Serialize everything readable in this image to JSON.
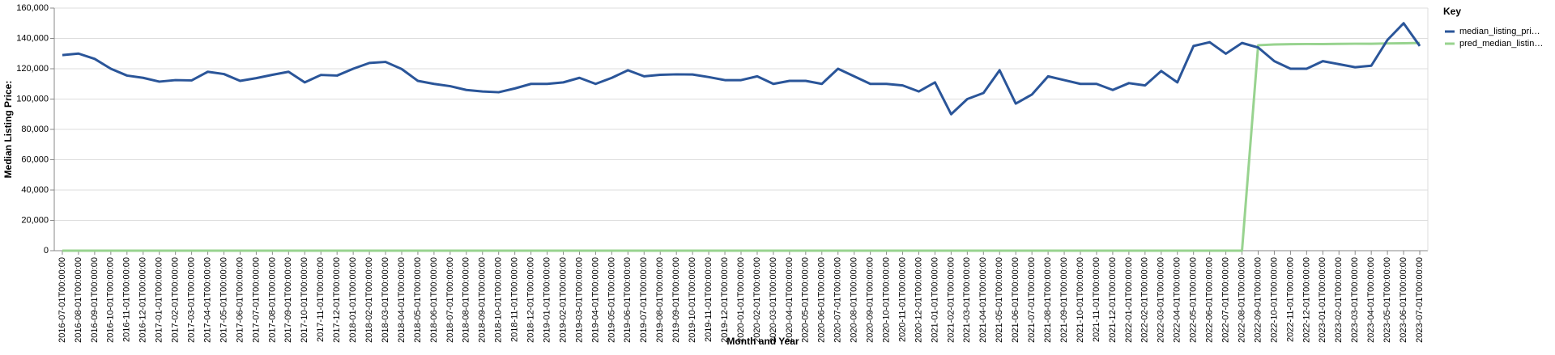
{
  "chart_data": {
    "type": "line",
    "x_label": "Month and Year",
    "y_label": "Median Listing Price:",
    "legend_title": "Key",
    "legend_position": "right",
    "grid": true,
    "categories": [
      "2016-07-01T00:00:00",
      "2016-08-01T00:00:00",
      "2016-09-01T00:00:00",
      "2016-10-01T00:00:00",
      "2016-11-01T00:00:00",
      "2016-12-01T00:00:00",
      "2017-01-01T00:00:00",
      "2017-02-01T00:00:00",
      "2017-03-01T00:00:00",
      "2017-04-01T00:00:00",
      "2017-05-01T00:00:00",
      "2017-06-01T00:00:00",
      "2017-07-01T00:00:00",
      "2017-08-01T00:00:00",
      "2017-09-01T00:00:00",
      "2017-10-01T00:00:00",
      "2017-11-01T00:00:00",
      "2017-12-01T00:00:00",
      "2018-01-01T00:00:00",
      "2018-02-01T00:00:00",
      "2018-03-01T00:00:00",
      "2018-04-01T00:00:00",
      "2018-05-01T00:00:00",
      "2018-06-01T00:00:00",
      "2018-07-01T00:00:00",
      "2018-08-01T00:00:00",
      "2018-09-01T00:00:00",
      "2018-10-01T00:00:00",
      "2018-11-01T00:00:00",
      "2018-12-01T00:00:00",
      "2019-01-01T00:00:00",
      "2019-02-01T00:00:00",
      "2019-03-01T00:00:00",
      "2019-04-01T00:00:00",
      "2019-05-01T00:00:00",
      "2019-06-01T00:00:00",
      "2019-07-01T00:00:00",
      "2019-08-01T00:00:00",
      "2019-09-01T00:00:00",
      "2019-10-01T00:00:00",
      "2019-11-01T00:00:00",
      "2019-12-01T00:00:00",
      "2020-01-01T00:00:00",
      "2020-02-01T00:00:00",
      "2020-03-01T00:00:00",
      "2020-04-01T00:00:00",
      "2020-05-01T00:00:00",
      "2020-06-01T00:00:00",
      "2020-07-01T00:00:00",
      "2020-08-01T00:00:00",
      "2020-09-01T00:00:00",
      "2020-10-01T00:00:00",
      "2020-11-01T00:00:00",
      "2020-12-01T00:00:00",
      "2021-01-01T00:00:00",
      "2021-02-01T00:00:00",
      "2021-03-01T00:00:00",
      "2021-04-01T00:00:00",
      "2021-05-01T00:00:00",
      "2021-06-01T00:00:00",
      "2021-07-01T00:00:00",
      "2021-08-01T00:00:00",
      "2021-09-01T00:00:00",
      "2021-10-01T00:00:00",
      "2021-11-01T00:00:00",
      "2021-12-01T00:00:00",
      "2022-01-01T00:00:00",
      "2022-02-01T00:00:00",
      "2022-03-01T00:00:00",
      "2022-04-01T00:00:00",
      "2022-05-01T00:00:00",
      "2022-06-01T00:00:00",
      "2022-07-01T00:00:00",
      "2022-08-01T00:00:00",
      "2022-09-01T00:00:00",
      "2022-10-01T00:00:00",
      "2022-11-01T00:00:00",
      "2022-12-01T00:00:00",
      "2023-01-01T00:00:00",
      "2023-02-01T00:00:00",
      "2023-03-01T00:00:00",
      "2023-04-01T00:00:00",
      "2023-05-01T00:00:00",
      "2023-06-01T00:00:00",
      "2023-07-01T00:00:00"
    ],
    "series": [
      {
        "name": "median_listing_pri…",
        "color": "#2a5599",
        "values": [
          129000,
          130000,
          126500,
          120000,
          115500,
          114000,
          111500,
          112500,
          112300,
          118000,
          116500,
          112000,
          113800,
          116000,
          118000,
          111000,
          115900,
          115500,
          120000,
          123800,
          124500,
          119800,
          112000,
          110000,
          108500,
          106000,
          105000,
          104500,
          107000,
          110000,
          110000,
          111000,
          114000,
          110000,
          114000,
          119000,
          115000,
          116000,
          116300,
          116200,
          114500,
          112500,
          112500,
          115000,
          110000,
          112000,
          112000,
          110000,
          120000,
          115000,
          110000,
          110000,
          109000,
          105000,
          111000,
          90000,
          100000,
          104000,
          119000,
          97000,
          103000,
          115000,
          112500,
          110000,
          110000,
          106000,
          110500,
          109000,
          118500,
          111000,
          135000,
          137500,
          129900,
          137000,
          134000,
          125000,
          120000,
          120000,
          125000,
          123000,
          121000,
          122000,
          139000,
          150000,
          135000
        ]
      },
      {
        "name": "pred_median_listin…",
        "color": "#98d38f",
        "values": [
          0,
          0,
          0,
          0,
          0,
          0,
          0,
          0,
          0,
          0,
          0,
          0,
          0,
          0,
          0,
          0,
          0,
          0,
          0,
          0,
          0,
          0,
          0,
          0,
          0,
          0,
          0,
          0,
          0,
          0,
          0,
          0,
          0,
          0,
          0,
          0,
          0,
          0,
          0,
          0,
          0,
          0,
          0,
          0,
          0,
          0,
          0,
          0,
          0,
          0,
          0,
          0,
          0,
          0,
          0,
          0,
          0,
          0,
          0,
          0,
          0,
          0,
          0,
          0,
          0,
          0,
          0,
          0,
          0,
          0,
          0,
          0,
          0,
          0,
          135500,
          136000,
          136200,
          136300,
          136300,
          136400,
          136500,
          136500,
          136700,
          136800,
          137000
        ]
      }
    ],
    "ylim": [
      0,
      160000
    ],
    "yticks": [
      0,
      {
        "value": 20000,
        "label": "20,000"
      },
      {
        "value": 40000,
        "label": "40,000"
      },
      {
        "value": 60000,
        "label": "60,000"
      },
      {
        "value": 80000,
        "label": "80,000"
      },
      {
        "value": 100000,
        "label": "100,000"
      },
      {
        "value": 120000,
        "label": "120,000"
      },
      {
        "value": 140000,
        "label": "140,000"
      },
      {
        "value": 160000,
        "label": "160,000"
      }
    ]
  }
}
